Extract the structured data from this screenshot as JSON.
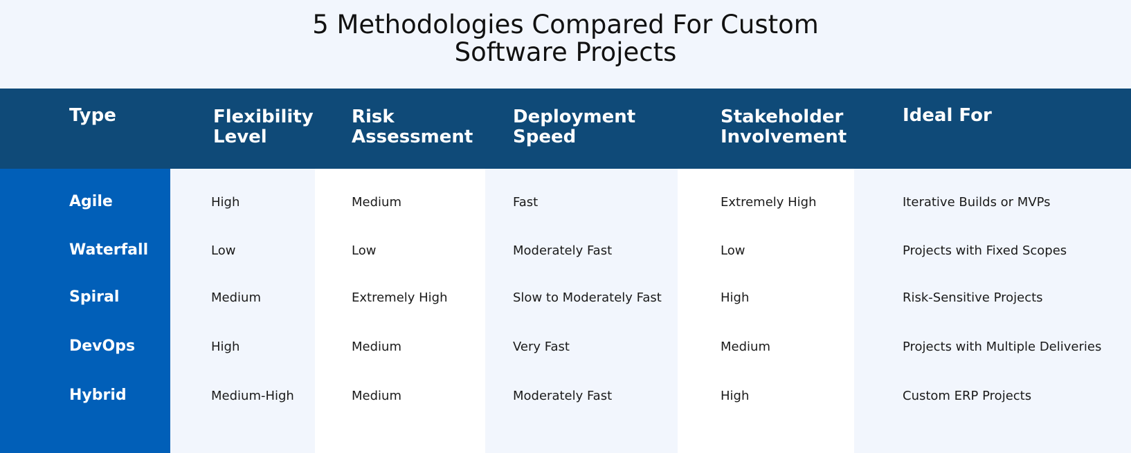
{
  "title": {
    "line1": "5 Methodologies Compared For Custom",
    "line2": "Software Projects"
  },
  "colors": {
    "header_bg": "#0f4a78",
    "type_column_bg": "#015fb8",
    "light_column_bg": "#f2f6fd",
    "white_column_bg": "#ffffff"
  },
  "columns": [
    {
      "l1": "Type",
      "l2": ""
    },
    {
      "l1": "Flexibility",
      "l2": "Level"
    },
    {
      "l1": "Risk",
      "l2": "Assessment"
    },
    {
      "l1": "Deployment",
      "l2": "Speed"
    },
    {
      "l1": "Stakeholder",
      "l2": "Involvement"
    },
    {
      "l1": "Ideal For",
      "l2": ""
    }
  ],
  "rows": [
    {
      "type": "Agile",
      "cells": [
        "High",
        "Medium",
        "Fast",
        "Extremely High",
        "Iterative Builds or MVPs"
      ]
    },
    {
      "type": "Waterfall",
      "cells": [
        "Low",
        "Low",
        "Moderately Fast",
        "Low",
        "Projects with Fixed Scopes"
      ]
    },
    {
      "type": "Spiral",
      "cells": [
        "Medium",
        "Extremely High",
        "Slow to Moderately Fast",
        "High",
        "Risk-Sensitive Projects"
      ]
    },
    {
      "type": "DevOps",
      "cells": [
        "High",
        "Medium",
        "Very Fast",
        "Medium",
        "Projects with Multiple Deliveries"
      ]
    },
    {
      "type": "Hybrid",
      "cells": [
        "Medium-High",
        "Medium",
        "Moderately Fast",
        "High",
        "Custom ERP Projects"
      ]
    }
  ]
}
